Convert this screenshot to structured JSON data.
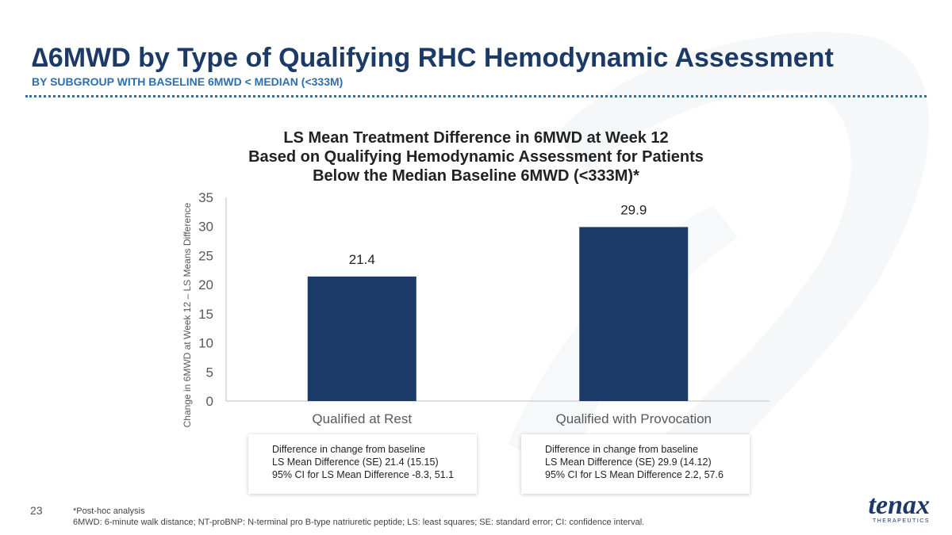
{
  "page": {
    "title": "∆6MWD by Type of Qualifying RHC Hemodynamic Assessment",
    "subtitle": "BY SUBGROUP WITH BASELINE 6MWD < MEDIAN (<333M)",
    "page_number": "23",
    "footnotes": [
      "*Post-hoc analysis",
      "6MWD: 6-minute walk distance; NT-proBNP: N-terminal pro B-type natriuretic peptide; LS: least squares; SE: standard error; CI: confidence interval."
    ],
    "logo": {
      "name": "tenax",
      "tagline": "THERAPEUTICS"
    },
    "colors": {
      "title": "#1b3a67",
      "subtitle": "#2d6fad",
      "bar": "#1b3a67"
    }
  },
  "chart_data": {
    "type": "bar",
    "title_lines": [
      "LS Mean Treatment Difference in 6MWD at Week 12",
      "Based on Qualifying Hemodynamic Assessment for Patients",
      "Below the Median Baseline 6MWD (<333M)*"
    ],
    "xlabel": "",
    "ylabel": "Change in 6MWD at Week 12 – LS Means Difference",
    "categories": [
      "Qualified at Rest",
      "Qualified with Provocation"
    ],
    "values": [
      21.4,
      29.9
    ],
    "data_labels": [
      "21.4",
      "29.9"
    ],
    "ylim": [
      0,
      35
    ],
    "yticks": [
      0,
      5,
      10,
      15,
      20,
      25,
      30,
      35
    ],
    "grid": false,
    "legend": "none",
    "bar_color": "#1b3a67"
  },
  "annotations": [
    {
      "line1": "Difference in change from baseline",
      "line2": "LS Mean Difference (SE) 21.4 (15.15)",
      "line3": "95% CI for LS Mean Difference -8.3, 51.1"
    },
    {
      "line1": "Difference in change from baseline",
      "line2": "LS Mean Difference (SE) 29.9 (14.12)",
      "line3": "95% CI for LS Mean Difference 2.2, 57.6"
    }
  ]
}
